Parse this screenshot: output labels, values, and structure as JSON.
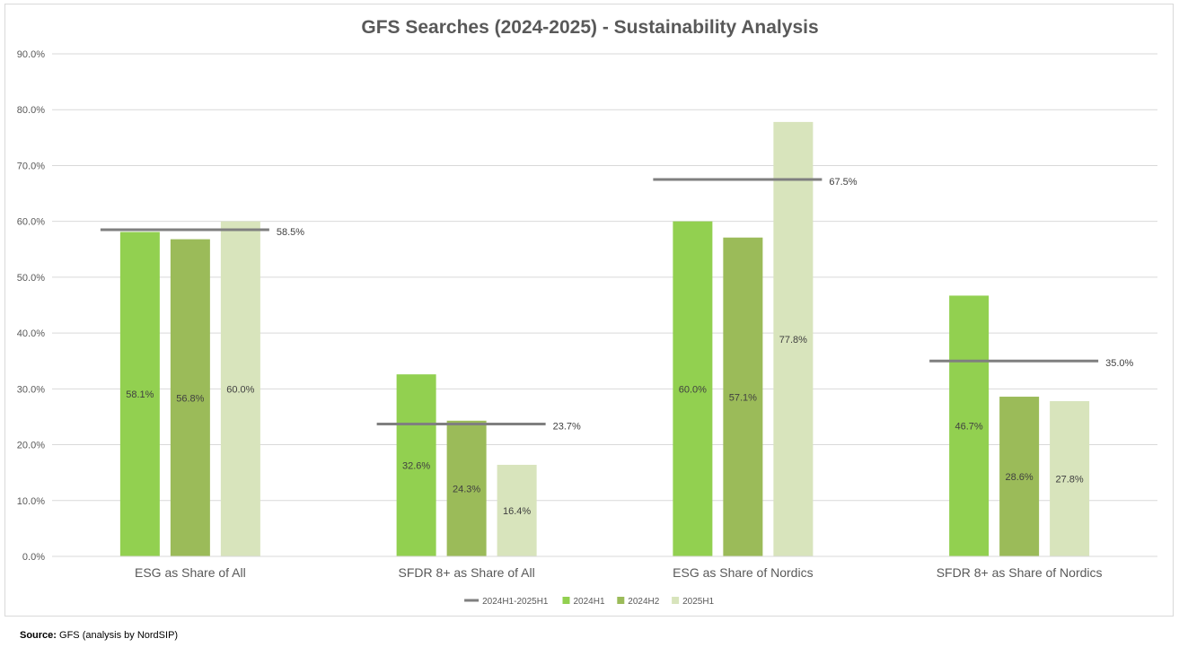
{
  "chart_data": {
    "type": "bar",
    "title": "GFS Searches (2024-2025) - Sustainability Analysis",
    "categories": [
      "ESG as Share of All",
      "SFDR 8+ as Share of All",
      "ESG as Share of Nordics",
      "SFDR 8+ as Share of Nordics"
    ],
    "series": [
      {
        "name": "2024H1",
        "values": [
          58.1,
          32.6,
          60.0,
          46.7
        ],
        "color": "#92d050"
      },
      {
        "name": "2024H2",
        "values": [
          56.8,
          24.3,
          57.1,
          28.6
        ],
        "color": "#9bbb59"
      },
      {
        "name": "2025H1",
        "values": [
          60.0,
          16.4,
          77.8,
          27.8
        ],
        "color": "#d8e4bc"
      }
    ],
    "average_line": {
      "name": "2024H1-2025H1",
      "values": [
        58.5,
        23.7,
        67.5,
        35.0
      ],
      "color": "#7f7f7f"
    },
    "data_labels": {
      "series": [
        [
          "58.1%",
          "32.6%",
          "60.0%",
          "46.7%"
        ],
        [
          "56.8%",
          "24.3%",
          "57.1%",
          "28.6%"
        ],
        [
          "60.0%",
          "16.4%",
          "77.8%",
          "27.8%"
        ]
      ],
      "average": [
        "58.5%",
        "23.7%",
        "67.5%",
        "35.0%"
      ]
    },
    "ylim": [
      0,
      90
    ],
    "yticks": [
      0,
      10,
      20,
      30,
      40,
      50,
      60,
      70,
      80,
      90
    ],
    "ytick_labels": [
      "0.0%",
      "10.0%",
      "20.0%",
      "30.0%",
      "40.0%",
      "50.0%",
      "60.0%",
      "70.0%",
      "80.0%",
      "90.0%"
    ],
    "grid": true,
    "legend_position": "bottom",
    "legend_order": [
      "2024H1-2025H1",
      "2024H1",
      "2024H2",
      "2025H1"
    ],
    "axis_color": "#d9d9d9",
    "text_color": "#595959"
  },
  "source": {
    "label": "Source:",
    "text": " GFS (analysis by NordSIP)"
  }
}
